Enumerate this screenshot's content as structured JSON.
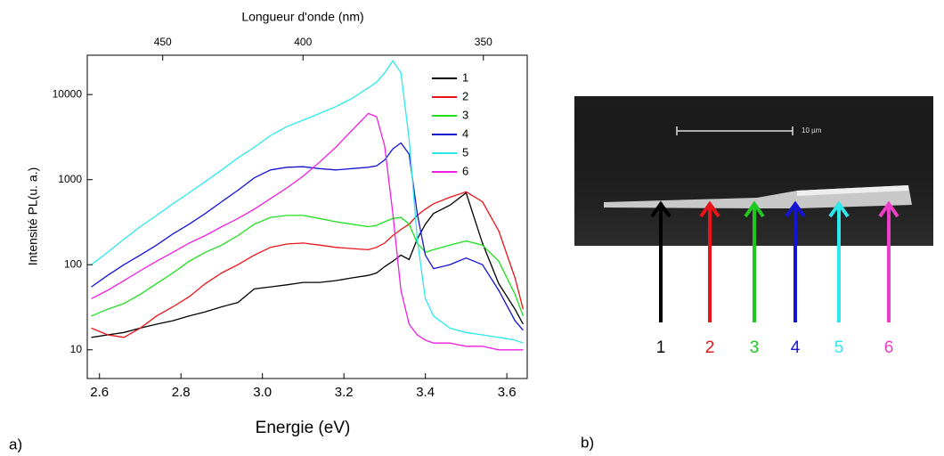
{
  "chart_data": {
    "type": "line",
    "xlabel": "Energie (eV)",
    "ylabel": "Intensité PL(u. a.)",
    "x2label": "Longueur d'onde (nm)",
    "yscale": "log",
    "legend": "upper right",
    "x": [
      2.58,
      2.62,
      2.66,
      2.7,
      2.74,
      2.78,
      2.82,
      2.86,
      2.9,
      2.94,
      2.98,
      3.02,
      3.06,
      3.1,
      3.14,
      3.18,
      3.22,
      3.26,
      3.28,
      3.3,
      3.32,
      3.34,
      3.36,
      3.38,
      3.4,
      3.42,
      3.46,
      3.5,
      3.54,
      3.58,
      3.62,
      3.64
    ],
    "xlim": [
      2.57,
      3.65
    ],
    "xticks": [
      2.6,
      2.8,
      {
        "value": 3,
        "label": "3.0"
      },
      3.2,
      3.4,
      3.6
    ],
    "ylim": [
      4.6,
      29000
    ],
    "yticks": [
      10,
      100,
      1000,
      10000
    ],
    "x2ticks": [
      450,
      400,
      350
    ],
    "series": [
      {
        "name": "1",
        "color": "#000000",
        "values": [
          14,
          15,
          16,
          18,
          20,
          22,
          25,
          28,
          32,
          36,
          52,
          55,
          58,
          62,
          62,
          65,
          70,
          75,
          80,
          95,
          110,
          130,
          115,
          200,
          300,
          400,
          500,
          700,
          180,
          60,
          30,
          20
        ]
      },
      {
        "name": "2",
        "color": "#e8141a",
        "values": [
          18,
          15,
          14,
          18,
          25,
          32,
          42,
          60,
          80,
          100,
          130,
          160,
          175,
          180,
          170,
          160,
          155,
          150,
          160,
          180,
          220,
          260,
          300,
          380,
          450,
          520,
          620,
          720,
          550,
          250,
          70,
          30
        ]
      },
      {
        "name": "3",
        "color": "#1ee01e",
        "values": [
          25,
          30,
          35,
          45,
          60,
          80,
          110,
          140,
          170,
          220,
          300,
          360,
          380,
          380,
          350,
          320,
          300,
          280,
          290,
          320,
          350,
          360,
          300,
          180,
          140,
          150,
          170,
          190,
          170,
          110,
          45,
          25
        ]
      },
      {
        "name": "4",
        "color": "#1414d2",
        "values": [
          55,
          75,
          100,
          130,
          170,
          230,
          300,
          400,
          550,
          750,
          1050,
          1300,
          1400,
          1420,
          1350,
          1300,
          1350,
          1400,
          1450,
          1700,
          2300,
          2700,
          2000,
          400,
          130,
          90,
          100,
          120,
          100,
          50,
          22,
          17
        ]
      },
      {
        "name": "5",
        "color": "#2ee8ec",
        "values": [
          100,
          140,
          200,
          280,
          380,
          520,
          700,
          950,
          1300,
          1800,
          2400,
          3300,
          4200,
          5000,
          6000,
          7200,
          9000,
          12000,
          14000,
          18000,
          25000,
          18000,
          3000,
          200,
          40,
          25,
          18,
          16,
          15,
          14,
          13,
          12
        ]
      },
      {
        "name": "6",
        "color": "#ee1ee0",
        "values": [
          40,
          50,
          65,
          85,
          110,
          140,
          180,
          220,
          280,
          350,
          450,
          600,
          800,
          1100,
          1600,
          2400,
          3800,
          6000,
          5500,
          2500,
          400,
          50,
          20,
          15,
          13,
          12,
          12,
          11,
          11,
          10,
          10,
          10
        ]
      }
    ]
  },
  "panel_labels": [
    "a)",
    "b)"
  ],
  "sem_image": {
    "scale_label": "10 µm",
    "markers": [
      {
        "label": "1",
        "color": "#000000"
      },
      {
        "label": "2",
        "color": "#e8141a"
      },
      {
        "label": "3",
        "color": "#1ec81e"
      },
      {
        "label": "4",
        "color": "#1414d2"
      },
      {
        "label": "5",
        "color": "#2ee8ec"
      },
      {
        "label": "6",
        "color": "#ee3ec8"
      }
    ]
  }
}
